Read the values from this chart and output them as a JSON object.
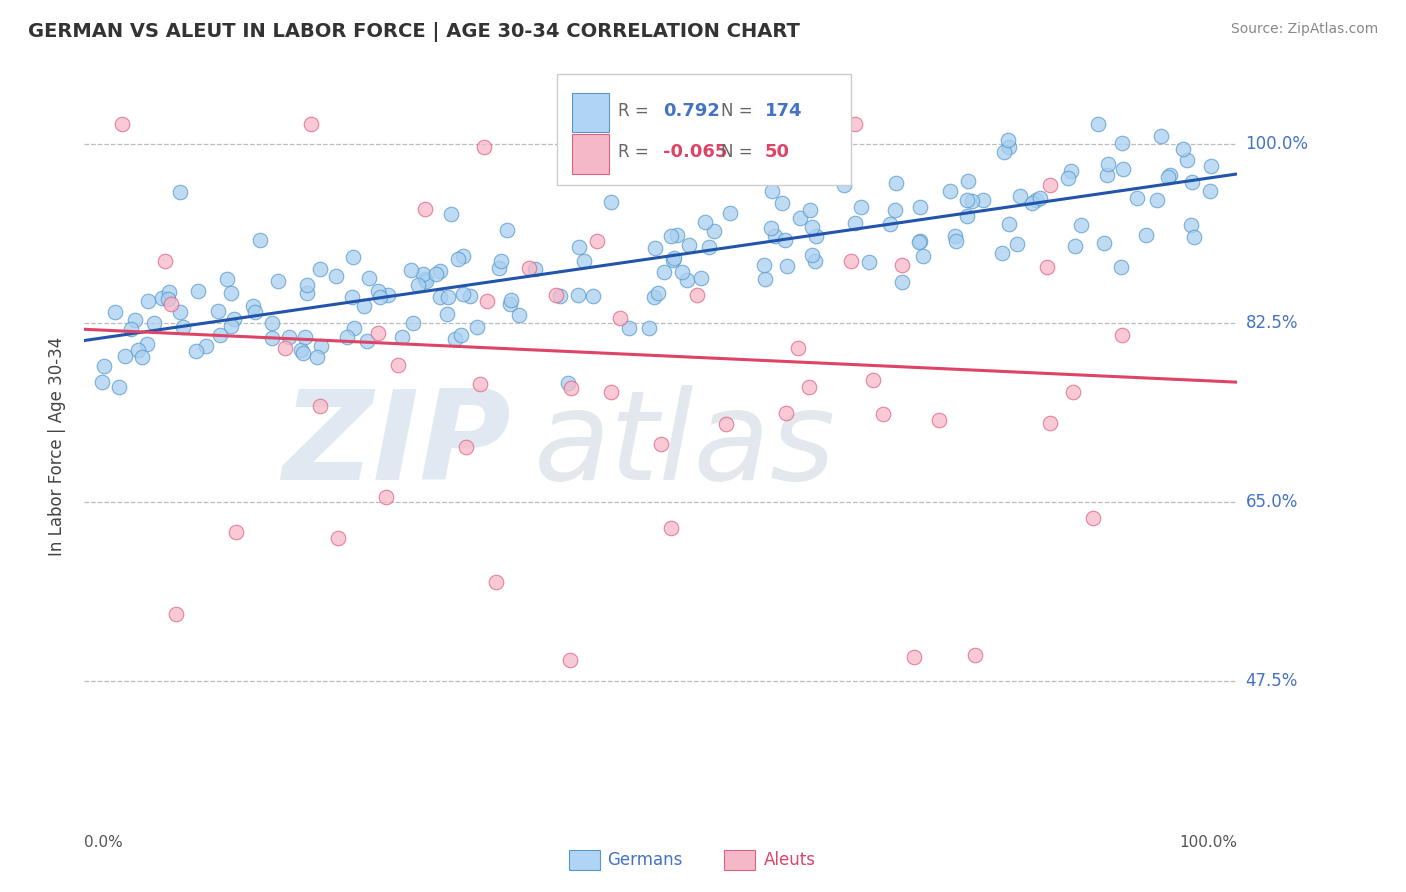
{
  "title": "GERMAN VS ALEUT IN LABOR FORCE | AGE 30-34 CORRELATION CHART",
  "source": "Source: ZipAtlas.com",
  "ylabel": "In Labor Force | Age 30-34",
  "yticks": [
    0.475,
    0.65,
    0.825,
    1.0
  ],
  "ytick_labels": [
    "47.5%",
    "65.0%",
    "82.5%",
    "100.0%"
  ],
  "xmin": 0.0,
  "xmax": 1.0,
  "ymin": 0.33,
  "ymax": 1.08,
  "german_R": 0.792,
  "german_N": 174,
  "aleut_R": -0.065,
  "aleut_N": 50,
  "german_color": "#aad0f0",
  "aleut_color": "#f7b8c8",
  "german_edge_color": "#5599cc",
  "aleut_edge_color": "#e06080",
  "german_line_color": "#2255aa",
  "aleut_line_color": "#dd4466",
  "background_color": "#ffffff",
  "grid_color": "#bbbbbb",
  "title_color": "#333333",
  "source_color": "#888888",
  "ytick_color": "#4472c4",
  "watermark_zip_color": "#c8d8e8",
  "watermark_atlas_color": "#c0ccd8",
  "point_size": 110,
  "line_width": 2.2,
  "legend_facecolor": "#ffffff",
  "legend_edgecolor": "#cccccc",
  "legend_german_box": "#b0d4f4",
  "legend_aleut_box": "#f4b8c8",
  "legend_text_color": "#666666",
  "legend_value_color_german": "#4472c4",
  "legend_value_color_aleut": "#dd4466"
}
